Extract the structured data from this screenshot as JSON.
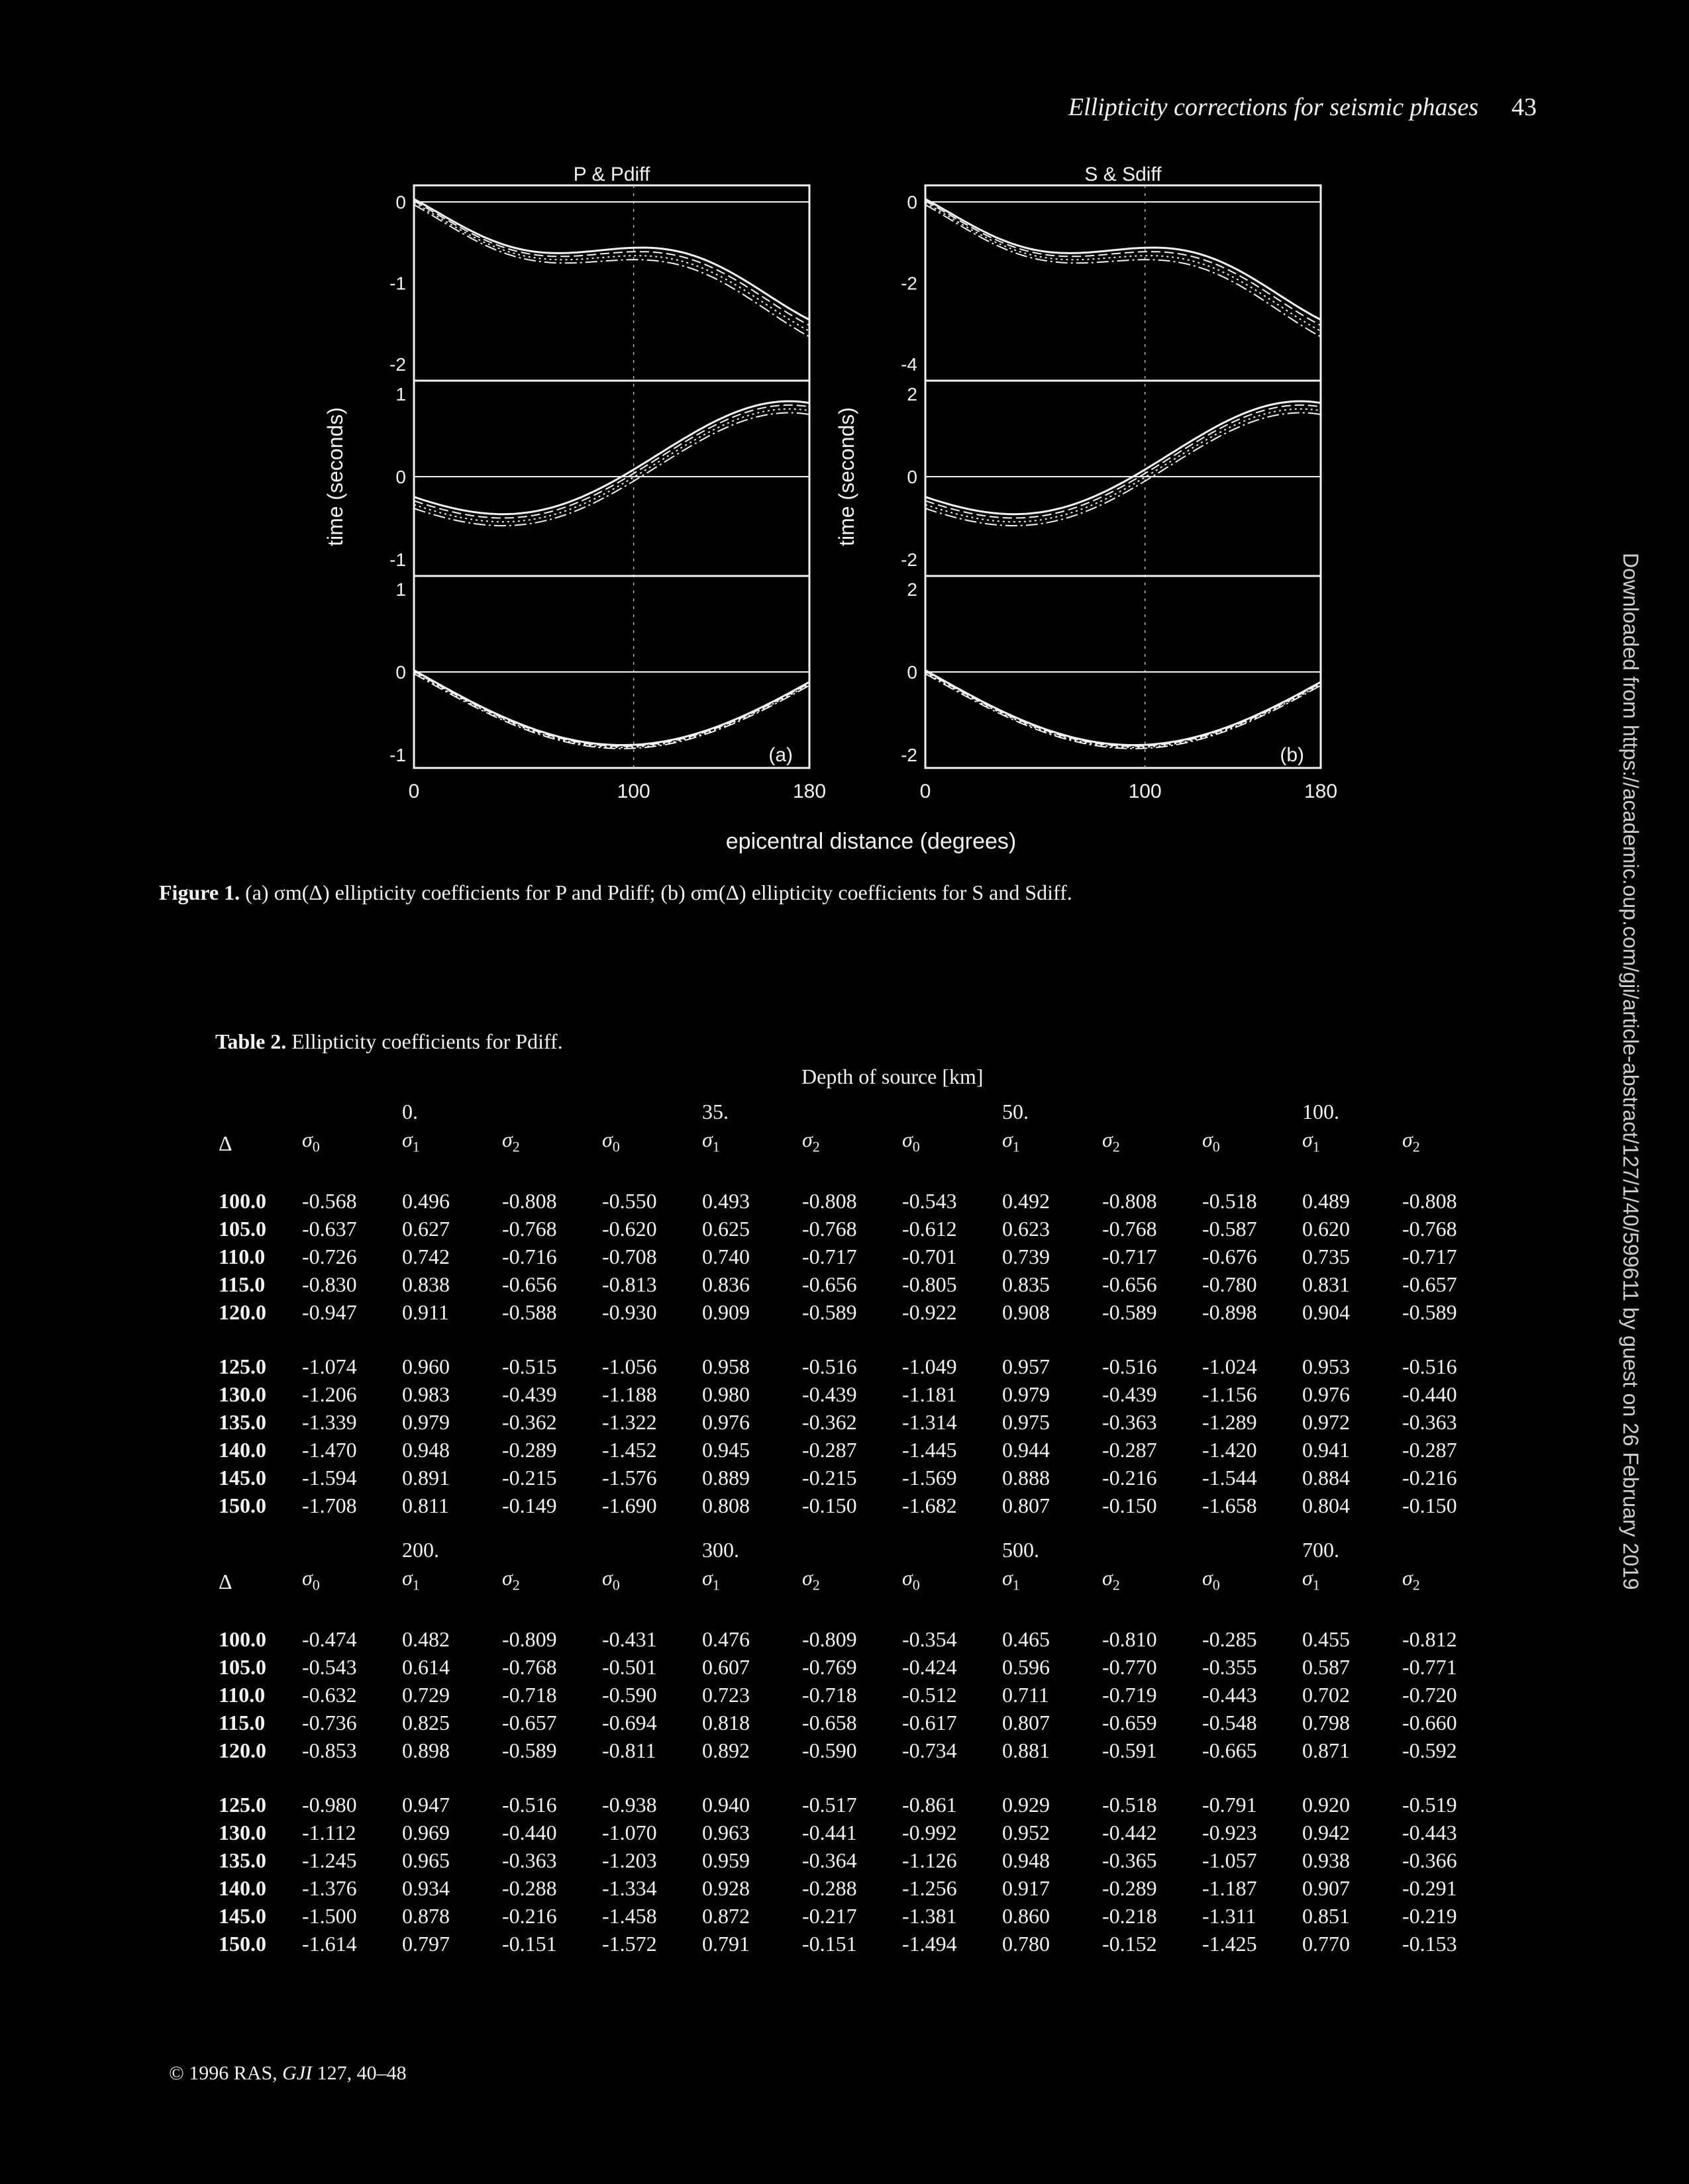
{
  "header": {
    "running_title": "Ellipticity corrections for seismic phases",
    "page_number": "43"
  },
  "figure": {
    "panel_a": {
      "title": "P & Pdiff",
      "label": "(a)",
      "ylabel": "time (seconds)",
      "yticks": [
        [
          "0",
          "-1",
          "-2"
        ],
        [
          "1",
          "0",
          "-1"
        ],
        [
          "1",
          "0",
          "-1"
        ]
      ],
      "xticks": [
        "0",
        "100",
        "180"
      ]
    },
    "panel_b": {
      "title": "S & Sdiff",
      "label": "(b)",
      "ylabel": "time (seconds)",
      "yticks": [
        [
          "0",
          "-2",
          "-4"
        ],
        [
          "2",
          "0",
          "-2"
        ],
        [
          "2",
          "0",
          "-2"
        ]
      ],
      "xticks": [
        "0",
        "100",
        "180"
      ]
    },
    "xlabel": "epicentral distance (degrees)"
  },
  "caption": {
    "label": "Figure 1.",
    "text": "(a) σm(Δ) ellipticity coefficients for P and Pdiff; (b) σm(Δ) ellipticity coefficients for S and Sdiff."
  },
  "table": {
    "label": "Table 2.",
    "title": "Ellipticity coefficients for Pdiff.",
    "depth_header": "Depth of source [km]",
    "delta_symbol": "Δ",
    "sigma_labels": [
      "σ0",
      "σ1",
      "σ2"
    ],
    "block1": {
      "depths": [
        "0.",
        "35.",
        "50.",
        "100."
      ],
      "rows": [
        [
          "100.0",
          "-0.568",
          "0.496",
          "-0.808",
          "-0.550",
          "0.493",
          "-0.808",
          "-0.543",
          "0.492",
          "-0.808",
          "-0.518",
          "0.489",
          "-0.808"
        ],
        [
          "105.0",
          "-0.637",
          "0.627",
          "-0.768",
          "-0.620",
          "0.625",
          "-0.768",
          "-0.612",
          "0.623",
          "-0.768",
          "-0.587",
          "0.620",
          "-0.768"
        ],
        [
          "110.0",
          "-0.726",
          "0.742",
          "-0.716",
          "-0.708",
          "0.740",
          "-0.717",
          "-0.701",
          "0.739",
          "-0.717",
          "-0.676",
          "0.735",
          "-0.717"
        ],
        [
          "115.0",
          "-0.830",
          "0.838",
          "-0.656",
          "-0.813",
          "0.836",
          "-0.656",
          "-0.805",
          "0.835",
          "-0.656",
          "-0.780",
          "0.831",
          "-0.657"
        ],
        [
          "120.0",
          "-0.947",
          "0.911",
          "-0.588",
          "-0.930",
          "0.909",
          "-0.589",
          "-0.922",
          "0.908",
          "-0.589",
          "-0.898",
          "0.904",
          "-0.589"
        ],
        [
          "125.0",
          "-1.074",
          "0.960",
          "-0.515",
          "-1.056",
          "0.958",
          "-0.516",
          "-1.049",
          "0.957",
          "-0.516",
          "-1.024",
          "0.953",
          "-0.516"
        ],
        [
          "130.0",
          "-1.206",
          "0.983",
          "-0.439",
          "-1.188",
          "0.980",
          "-0.439",
          "-1.181",
          "0.979",
          "-0.439",
          "-1.156",
          "0.976",
          "-0.440"
        ],
        [
          "135.0",
          "-1.339",
          "0.979",
          "-0.362",
          "-1.322",
          "0.976",
          "-0.362",
          "-1.314",
          "0.975",
          "-0.363",
          "-1.289",
          "0.972",
          "-0.363"
        ],
        [
          "140.0",
          "-1.470",
          "0.948",
          "-0.289",
          "-1.452",
          "0.945",
          "-0.287",
          "-1.445",
          "0.944",
          "-0.287",
          "-1.420",
          "0.941",
          "-0.287"
        ],
        [
          "145.0",
          "-1.594",
          "0.891",
          "-0.215",
          "-1.576",
          "0.889",
          "-0.215",
          "-1.569",
          "0.888",
          "-0.216",
          "-1.544",
          "0.884",
          "-0.216"
        ],
        [
          "150.0",
          "-1.708",
          "0.811",
          "-0.149",
          "-1.690",
          "0.808",
          "-0.150",
          "-1.682",
          "0.807",
          "-0.150",
          "-1.658",
          "0.804",
          "-0.150"
        ]
      ]
    },
    "block2": {
      "depths": [
        "200.",
        "300.",
        "500.",
        "700."
      ],
      "rows": [
        [
          "100.0",
          "-0.474",
          "0.482",
          "-0.809",
          "-0.431",
          "0.476",
          "-0.809",
          "-0.354",
          "0.465",
          "-0.810",
          "-0.285",
          "0.455",
          "-0.812"
        ],
        [
          "105.0",
          "-0.543",
          "0.614",
          "-0.768",
          "-0.501",
          "0.607",
          "-0.769",
          "-0.424",
          "0.596",
          "-0.770",
          "-0.355",
          "0.587",
          "-0.771"
        ],
        [
          "110.0",
          "-0.632",
          "0.729",
          "-0.718",
          "-0.590",
          "0.723",
          "-0.718",
          "-0.512",
          "0.711",
          "-0.719",
          "-0.443",
          "0.702",
          "-0.720"
        ],
        [
          "115.0",
          "-0.736",
          "0.825",
          "-0.657",
          "-0.694",
          "0.818",
          "-0.658",
          "-0.617",
          "0.807",
          "-0.659",
          "-0.548",
          "0.798",
          "-0.660"
        ],
        [
          "120.0",
          "-0.853",
          "0.898",
          "-0.589",
          "-0.811",
          "0.892",
          "-0.590",
          "-0.734",
          "0.881",
          "-0.591",
          "-0.665",
          "0.871",
          "-0.592"
        ],
        [
          "125.0",
          "-0.980",
          "0.947",
          "-0.516",
          "-0.938",
          "0.940",
          "-0.517",
          "-0.861",
          "0.929",
          "-0.518",
          "-0.791",
          "0.920",
          "-0.519"
        ],
        [
          "130.0",
          "-1.112",
          "0.969",
          "-0.440",
          "-1.070",
          "0.963",
          "-0.441",
          "-0.992",
          "0.952",
          "-0.442",
          "-0.923",
          "0.942",
          "-0.443"
        ],
        [
          "135.0",
          "-1.245",
          "0.965",
          "-0.363",
          "-1.203",
          "0.959",
          "-0.364",
          "-1.126",
          "0.948",
          "-0.365",
          "-1.057",
          "0.938",
          "-0.366"
        ],
        [
          "140.0",
          "-1.376",
          "0.934",
          "-0.288",
          "-1.334",
          "0.928",
          "-0.288",
          "-1.256",
          "0.917",
          "-0.289",
          "-1.187",
          "0.907",
          "-0.291"
        ],
        [
          "145.0",
          "-1.500",
          "0.878",
          "-0.216",
          "-1.458",
          "0.872",
          "-0.217",
          "-1.381",
          "0.860",
          "-0.218",
          "-1.311",
          "0.851",
          "-0.219"
        ],
        [
          "150.0",
          "-1.614",
          "0.797",
          "-0.151",
          "-1.572",
          "0.791",
          "-0.151",
          "-1.494",
          "0.780",
          "-0.152",
          "-1.425",
          "0.770",
          "-0.153"
        ]
      ]
    }
  },
  "footer": {
    "copyright": "© 1996 RAS,",
    "journal": "GJI",
    "volume_pages": "127, 40–48"
  },
  "side_note": "Downloaded from https://academic.oup.com/gji/article-abstract/127/1/40/599611 by guest on 26 February 2019"
}
